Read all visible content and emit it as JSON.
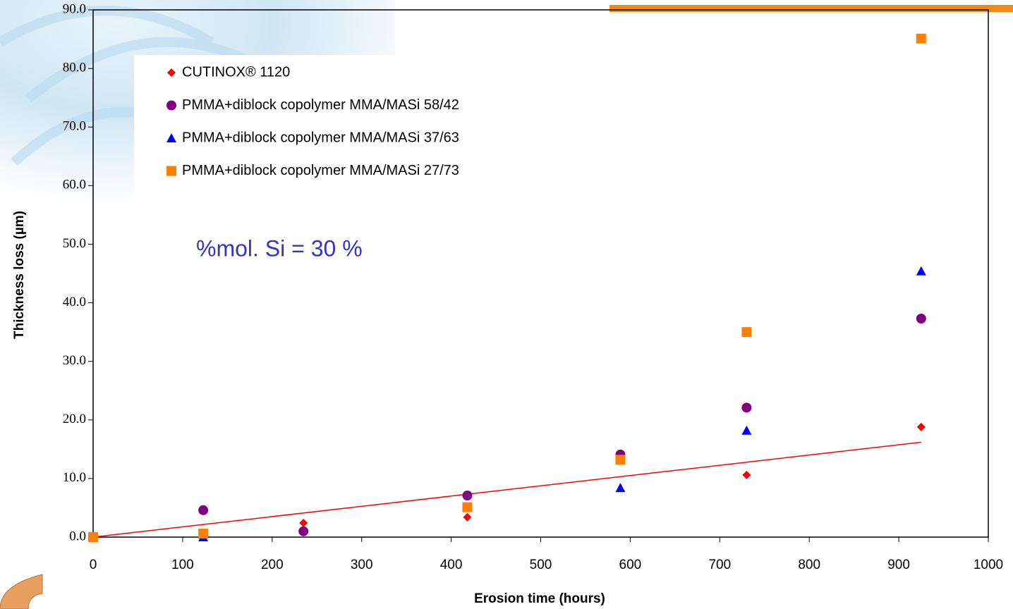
{
  "chart_data": {
    "type": "scatter",
    "xlabel": "Erosion time (hours)",
    "ylabel": "Thickness loss (µm)",
    "annotation": "%mol. Si = 30 %",
    "xlim": [
      0,
      1000
    ],
    "xticks": [
      0,
      100,
      200,
      300,
      400,
      500,
      600,
      700,
      800,
      900,
      1000
    ],
    "ylim": [
      0,
      90
    ],
    "yticks": [
      {
        "value": 0,
        "label": "0.0"
      },
      {
        "value": 10,
        "label": "10.0"
      },
      {
        "value": 20,
        "label": "20.0"
      },
      {
        "value": 30,
        "label": "30.0"
      },
      {
        "value": 40,
        "label": "40.0"
      },
      {
        "value": 50,
        "label": "50.0"
      },
      {
        "value": 60,
        "label": "60.0"
      },
      {
        "value": 70,
        "label": "70.0"
      },
      {
        "value": 80,
        "label": "80.0"
      },
      {
        "value": 90,
        "label": "90.0"
      }
    ],
    "series": [
      {
        "name": "CUTINOX® 1120",
        "color": "#ff0000",
        "marker": "diamond",
        "x": [
          0,
          235,
          418,
          730,
          925
        ],
        "values": [
          0,
          2.4,
          3.4,
          10.6,
          18.8
        ]
      },
      {
        "name": "PMMA+diblock copolymer MMA/MASi 58/42",
        "color": "#800080",
        "marker": "circle",
        "x": [
          0,
          123,
          235,
          418,
          589,
          730,
          925
        ],
        "values": [
          0,
          4.6,
          1.0,
          7.1,
          14.1,
          22.1,
          37.3
        ]
      },
      {
        "name": "PMMA+diblock copolymer MMA/MASi 37/63",
        "color": "#0000ff",
        "marker": "triangle",
        "x": [
          0,
          123,
          589,
          730,
          925
        ],
        "values": [
          0,
          0,
          8.4,
          18.2,
          45.4
        ]
      },
      {
        "name": "PMMA+diblock copolymer MMA/MASi 27/73",
        "color": "#ff7f00",
        "marker": "square",
        "x": [
          0,
          123,
          418,
          589,
          730,
          925
        ],
        "values": [
          0,
          0.6,
          5.1,
          13.2,
          35.0,
          85.1
        ]
      }
    ],
    "trendline": {
      "color": "#ff0000",
      "x": [
        0,
        925
      ],
      "values": [
        0,
        16.2
      ]
    }
  }
}
